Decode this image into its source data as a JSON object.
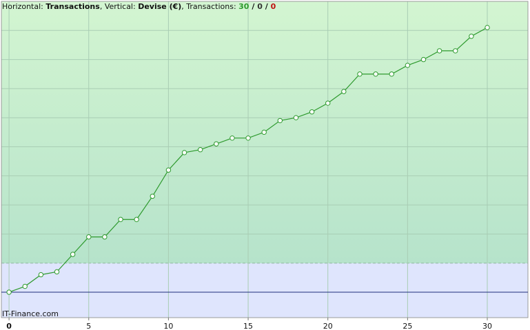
{
  "header": {
    "horizontal_label": "Horizontal:",
    "x_label": "Transactions",
    "vertical_label": "Vertical:",
    "y_label": "Devise (€)",
    "transactions_label": "Transactions:",
    "counts": [
      30,
      0,
      0
    ],
    "separator": "/"
  },
  "footer": "IT-Finance.com",
  "chart_data": {
    "type": "line",
    "color": "#2e9a2e",
    "x": [
      0,
      1,
      2,
      3,
      4,
      5,
      6,
      7,
      8,
      9,
      10,
      11,
      12,
      13,
      14,
      15,
      16,
      17,
      18,
      19,
      20,
      21,
      22,
      23,
      24,
      25,
      26,
      27,
      28,
      29,
      30
    ],
    "values": [
      0,
      0.2,
      0.6,
      0.7,
      1.3,
      1.9,
      1.9,
      2.5,
      2.5,
      3.3,
      4.2,
      4.8,
      4.9,
      5.1,
      5.3,
      5.3,
      5.5,
      5.9,
      6,
      6.2,
      6.5,
      6.9,
      7.5,
      7.5,
      7.5,
      7.8,
      8,
      8.3,
      8.3,
      8.8,
      9.1
    ],
    "xlim": [
      -0.48,
      32.55
    ],
    "ylim": [
      -0.875,
      10
    ],
    "xticks": [
      0,
      5,
      10,
      15,
      20,
      25,
      30
    ],
    "grid": true
  }
}
